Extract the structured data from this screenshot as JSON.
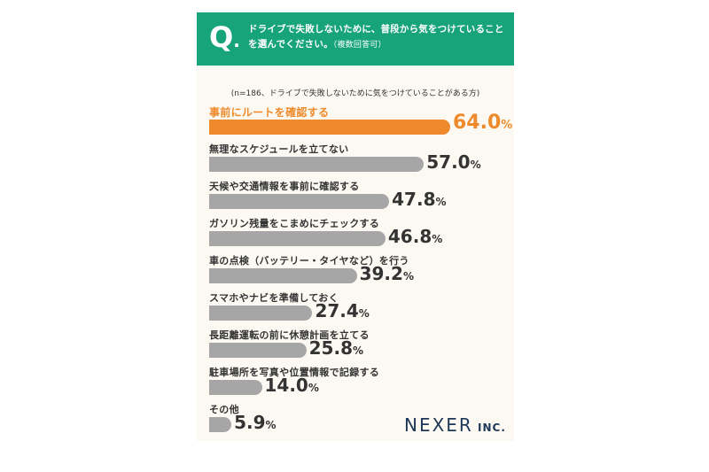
{
  "header": {
    "q_mark": "Q",
    "q_dot": ".",
    "question": "ドライブで失敗しないために、普段から気をつけていることを選んでください。",
    "question_note": "（複数回答可）"
  },
  "sample_note": "(n=186、ドライブで失敗しないために気をつけていることがある方)",
  "logo": {
    "name": "NEXER",
    "suffix": " INC."
  },
  "colors": {
    "header": "#17a47b",
    "highlight": "#ee8a2b",
    "bar": "#a6a6a7"
  },
  "chart_data": {
    "type": "bar",
    "orientation": "horizontal",
    "unit": "%",
    "xlim": [
      0,
      100
    ],
    "categories": [
      "事前にルートを確認する",
      "無理なスケジュールを立てない",
      "天候や交通情報を事前に確認する",
      "ガソリン残量をこまめにチェックする",
      "車の点検（バッテリー・タイヤなど）を行う",
      "スマホやナビを準備しておく",
      "長距離運転の前に休憩計画を立てる",
      "駐車場所を写真や位置情報で記録する",
      "その他"
    ],
    "values": [
      64.0,
      57.0,
      47.8,
      46.8,
      39.2,
      27.4,
      25.8,
      14.0,
      5.9
    ],
    "value_labels": [
      "64.0",
      "57.0",
      "47.8",
      "46.8",
      "39.2",
      "27.4",
      "25.8",
      "14.0",
      "5.9"
    ],
    "highlight_index": 0
  }
}
